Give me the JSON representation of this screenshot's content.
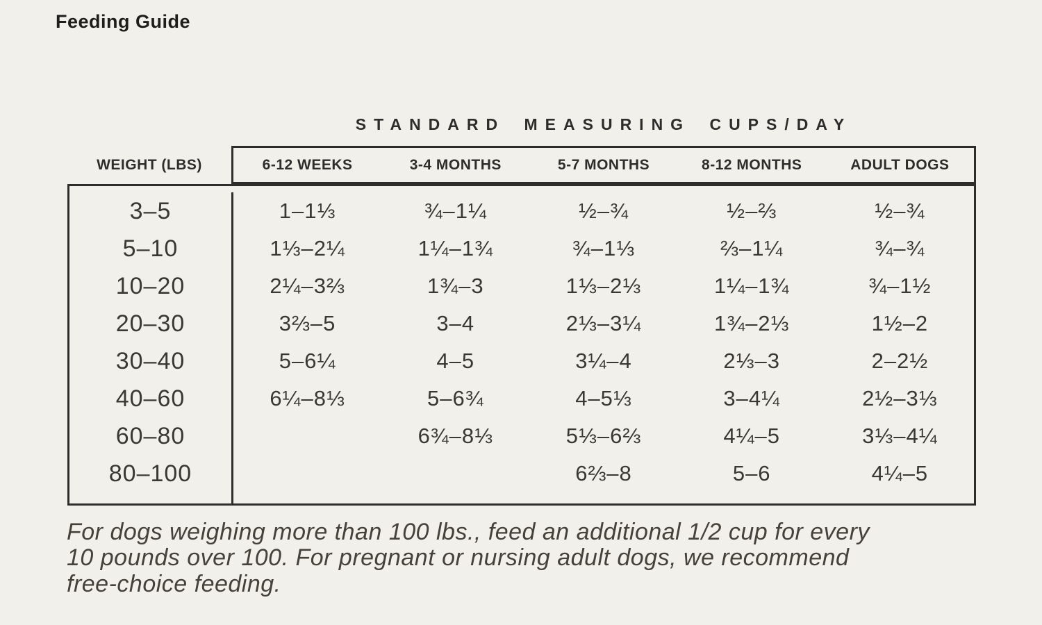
{
  "page": {
    "title": "Feeding Guide",
    "background_color": "#f2f0ea",
    "border_color": "#2e2d2b",
    "text_color": "#3a3833"
  },
  "table": {
    "super_header": "STANDARD MEASURING CUPS/DAY",
    "weight_header": "WEIGHT (LBS)",
    "columns": [
      "6-12 WEEKS",
      "3-4 MONTHS",
      "5-7 MONTHS",
      "8-12 MONTHS",
      "ADULT DOGS"
    ],
    "rows": [
      {
        "weight": "3–5",
        "values": [
          "1–1⅓",
          "¾–1¼",
          "½–¾",
          "½–⅔",
          "½–¾"
        ]
      },
      {
        "weight": "5–10",
        "values": [
          "1⅓–2¼",
          "1¼–1¾",
          "¾–1⅓",
          "⅔–1¼",
          "¾–¾"
        ]
      },
      {
        "weight": "10–20",
        "values": [
          "2¼–3⅔",
          "1¾–3",
          "1⅓–2⅓",
          "1¼–1¾",
          "¾–1½"
        ]
      },
      {
        "weight": "20–30",
        "values": [
          "3⅔–5",
          "3–4",
          "2⅓–3¼",
          "1¾–2⅓",
          "1½–2"
        ]
      },
      {
        "weight": "30–40",
        "values": [
          "5–6¼",
          "4–5",
          "3¼–4",
          "2⅓–3",
          "2–2½"
        ]
      },
      {
        "weight": "40–60",
        "values": [
          "6¼–8⅓",
          "5–6¾",
          "4–5⅓",
          "3–4¼",
          "2½–3⅓"
        ]
      },
      {
        "weight": "60–80",
        "values": [
          "",
          "6¾–8⅓",
          "5⅓–6⅔",
          "4¼–5",
          "3⅓–4¼"
        ]
      },
      {
        "weight": "80–100",
        "values": [
          "",
          "",
          "6⅔–8",
          "5–6",
          "4¼–5"
        ]
      }
    ]
  },
  "footnote": {
    "lines": [
      "For dogs weighing more than 100 lbs., feed an additional 1/2 cup for every",
      "10 pounds over 100. For pregnant or nursing adult dogs, we recommend",
      "free-choice feeding."
    ]
  }
}
